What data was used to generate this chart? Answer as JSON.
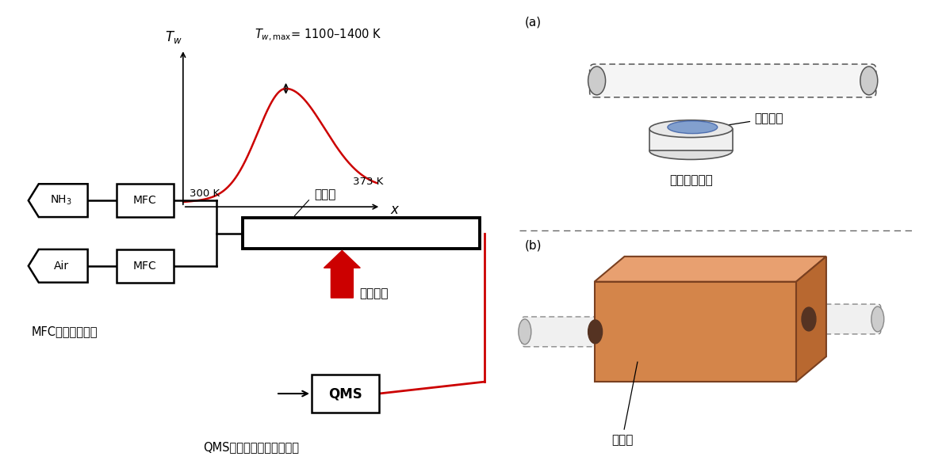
{
  "bg_color": "#ffffff",
  "left_panel": {
    "nh3_label": "NH$_3$",
    "air_label": "Air",
    "tube_label": "石英管",
    "heat_label": "外部熱源",
    "mfc_note": "MFC：流量制御器",
    "qms_label": "QMS",
    "qms_note": "QMS：四重極型質量分析器"
  },
  "graph": {
    "tw_label": "$T_w$",
    "tw_max_label": "$T_{w,\\mathrm{max}}$= 1100–1400 K",
    "x_label": "$x$",
    "t_left": "300 K",
    "t_right": "373 K"
  },
  "right_panel": {
    "label_a": "(a)",
    "label_b": "(b)",
    "burner_label": "水素バーナー",
    "flame_label": "水素火炎",
    "furnace_label": "電気炉"
  },
  "red_color": "#cc0000",
  "black_color": "#000000",
  "orange_color": "#d4854a",
  "orange_light": "#e8a070",
  "orange_dark": "#b86830"
}
